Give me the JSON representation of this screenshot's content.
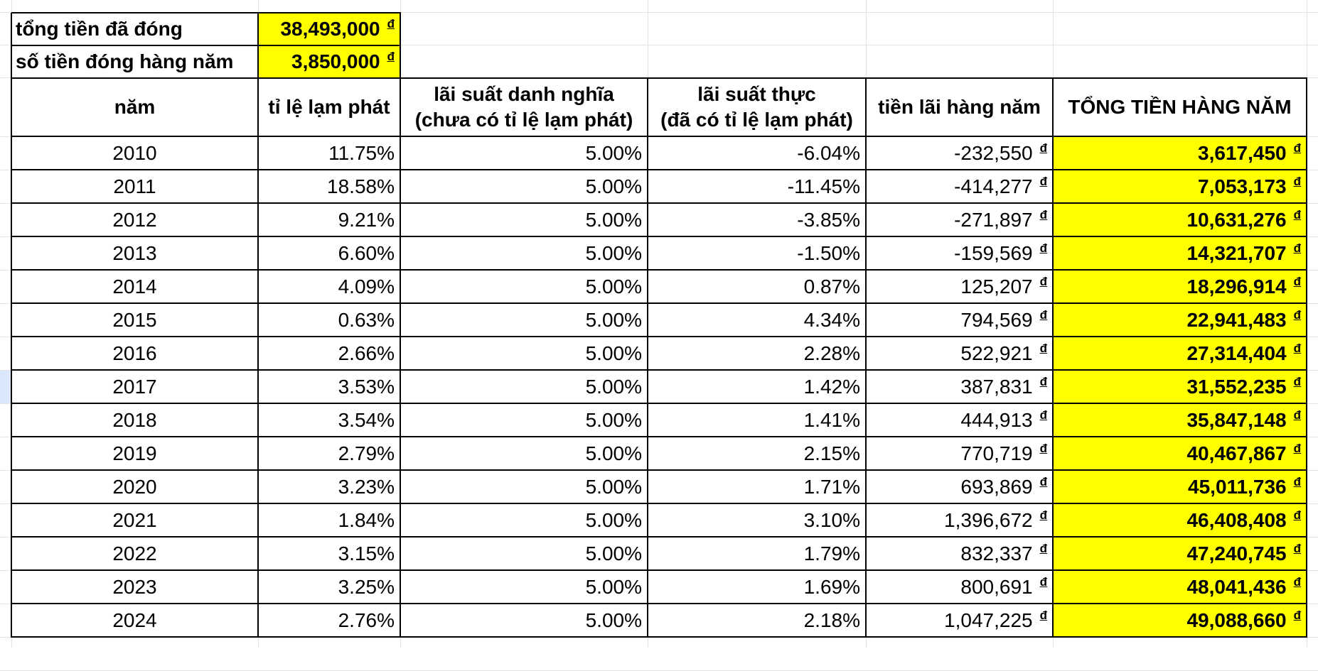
{
  "sheet": {
    "currency_symbol": "đ",
    "highlight_color": "#ffff00",
    "summary": [
      {
        "label": "tổng tiền đã đóng",
        "value": "38,493,000"
      },
      {
        "label": "số tiền đóng hàng năm",
        "value": "3,850,000"
      }
    ],
    "headers": {
      "year": "năm",
      "inflation": "tỉ lệ lạm phát",
      "nominal_line1": "lãi suất danh nghĩa",
      "nominal_line2": "(chưa có tỉ lệ lạm phát)",
      "real_line1": "lãi suất thực",
      "real_line2": "(đã có tỉ lệ lạm phát)",
      "interest": "tiền lãi hàng năm",
      "total": "TỔNG TIỀN HÀNG NĂM"
    },
    "rows": [
      {
        "year": "2010",
        "inflation": "11.75%",
        "nominal": "5.00%",
        "real": "-6.04%",
        "interest": "-232,550",
        "total": "3,617,450"
      },
      {
        "year": "2011",
        "inflation": "18.58%",
        "nominal": "5.00%",
        "real": "-11.45%",
        "interest": "-414,277",
        "total": "7,053,173"
      },
      {
        "year": "2012",
        "inflation": "9.21%",
        "nominal": "5.00%",
        "real": "-3.85%",
        "interest": "-271,897",
        "total": "10,631,276"
      },
      {
        "year": "2013",
        "inflation": "6.60%",
        "nominal": "5.00%",
        "real": "-1.50%",
        "interest": "-159,569",
        "total": "14,321,707"
      },
      {
        "year": "2014",
        "inflation": "4.09%",
        "nominal": "5.00%",
        "real": "0.87%",
        "interest": "125,207",
        "total": "18,296,914"
      },
      {
        "year": "2015",
        "inflation": "0.63%",
        "nominal": "5.00%",
        "real": "4.34%",
        "interest": "794,569",
        "total": "22,941,483"
      },
      {
        "year": "2016",
        "inflation": "2.66%",
        "nominal": "5.00%",
        "real": "2.28%",
        "interest": "522,921",
        "total": "27,314,404"
      },
      {
        "year": "2017",
        "inflation": "3.53%",
        "nominal": "5.00%",
        "real": "1.42%",
        "interest": "387,831",
        "total": "31,552,235"
      },
      {
        "year": "2018",
        "inflation": "3.54%",
        "nominal": "5.00%",
        "real": "1.41%",
        "interest": "444,913",
        "total": "35,847,148"
      },
      {
        "year": "2019",
        "inflation": "2.79%",
        "nominal": "5.00%",
        "real": "2.15%",
        "interest": "770,719",
        "total": "40,467,867"
      },
      {
        "year": "2020",
        "inflation": "3.23%",
        "nominal": "5.00%",
        "real": "1.71%",
        "interest": "693,869",
        "total": "45,011,736"
      },
      {
        "year": "2021",
        "inflation": "1.84%",
        "nominal": "5.00%",
        "real": "3.10%",
        "interest": "1,396,672",
        "total": "46,408,408"
      },
      {
        "year": "2022",
        "inflation": "3.15%",
        "nominal": "5.00%",
        "real": "1.79%",
        "interest": "832,337",
        "total": "47,240,745"
      },
      {
        "year": "2023",
        "inflation": "3.25%",
        "nominal": "5.00%",
        "real": "1.69%",
        "interest": "800,691",
        "total": "48,041,436"
      },
      {
        "year": "2024",
        "inflation": "2.76%",
        "nominal": "5.00%",
        "real": "2.18%",
        "interest": "1,047,225",
        "total": "49,088,660"
      }
    ]
  }
}
